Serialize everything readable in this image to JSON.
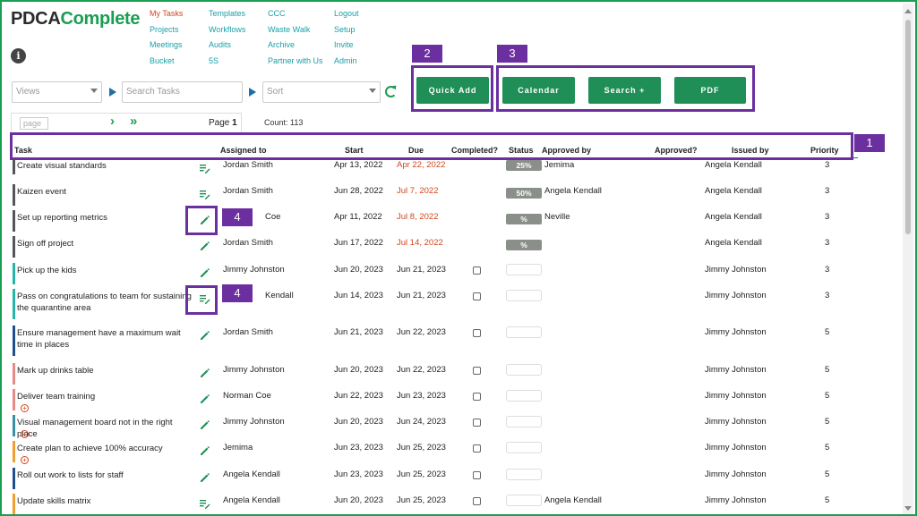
{
  "logo": {
    "part1": "PDCA",
    "part2": "Complete"
  },
  "nav": {
    "col1": [
      "My Tasks",
      "Projects",
      "Meetings",
      "Bucket"
    ],
    "col2": [
      "Templates",
      "Workflows",
      "Audits",
      "5S"
    ],
    "col3": [
      "CCC",
      "Waste Walk",
      "Archive",
      "Partner with Us"
    ],
    "col4": [
      "Logout",
      "Setup",
      "Invite",
      "Admin"
    ]
  },
  "filters": {
    "views_placeholder": "Views",
    "search_placeholder": "Search Tasks",
    "sort_placeholder": "Sort"
  },
  "buttons": {
    "quick_add": "Quick Add",
    "calendar": "Calendar",
    "search_plus": "Search +",
    "pdf": "PDF"
  },
  "pagination": {
    "page_input_placeholder": "page",
    "page_label": "Page",
    "page_number": "1",
    "count_text": "Count: 113"
  },
  "callouts": [
    "1",
    "2",
    "3",
    "4",
    "4"
  ],
  "columns": [
    "Task",
    "Assigned to",
    "Start",
    "Due",
    "Completed?",
    "Status",
    "Approved by",
    "Approved?",
    "Issued by",
    "Priority"
  ],
  "colors": {
    "brand_green": "#1a9e52",
    "callout_purple": "#6b2fa0",
    "overdue_red": "#d2451e",
    "link_teal": "#1aa0a8"
  },
  "rows": [
    {
      "task": "Create visual standards",
      "assigned": "Jordan Smith",
      "start": "Apr 13, 2022",
      "due": "Apr 22, 2022",
      "status": "25%",
      "approved_by": "Jemima",
      "issued_by": "Angela Kendall",
      "priority": "3"
    },
    {
      "task": "Kaizen event",
      "assigned": "Jordan Smith",
      "start": "Jun 28, 2022",
      "due": "Jul 7, 2022",
      "status": "50%",
      "approved_by": "Angela Kendall",
      "issued_by": "Angela Kendall",
      "priority": "3"
    },
    {
      "task": "Set up reporting metrics",
      "assigned": "Coe",
      "start": "Apr 11, 2022",
      "due": "Jul 8, 2022",
      "status": "%",
      "approved_by": "Neville",
      "issued_by": "Angela Kendall",
      "priority": "3"
    },
    {
      "task": "Sign off project",
      "assigned": "Jordan Smith",
      "start": "Jun 17, 2022",
      "due": "Jul 14, 2022",
      "status": "%",
      "approved_by": "",
      "issued_by": "Angela Kendall",
      "priority": "3"
    },
    {
      "task": "Pick up the kids",
      "assigned": "Jimmy Johnston",
      "start": "Jun 20, 2023",
      "due": "Jun 21, 2023",
      "status": "",
      "approved_by": "",
      "issued_by": "Jimmy Johnston",
      "priority": "3"
    },
    {
      "task": "Pass on congratulations to team for sustaining the quarantine area",
      "assigned": "Kendall",
      "start": "Jun 14, 2023",
      "due": "Jun 21, 2023",
      "status": "",
      "approved_by": "",
      "issued_by": "Jimmy Johnston",
      "priority": "3"
    },
    {
      "task": "Ensure management have a maximum wait time in places",
      "assigned": "Jordan Smith",
      "start": "Jun 21, 2023",
      "due": "Jun 22, 2023",
      "status": "",
      "approved_by": "",
      "issued_by": "Jimmy Johnston",
      "priority": "5"
    },
    {
      "task": "Mark up drinks table",
      "assigned": "Jimmy Johnston",
      "start": "Jun 20, 2023",
      "due": "Jun 22, 2023",
      "status": "",
      "approved_by": "",
      "issued_by": "Jimmy Johnston",
      "priority": "5"
    },
    {
      "task": "Deliver team training",
      "assigned": "Norman Coe",
      "start": "Jun 22, 2023",
      "due": "Jun 23, 2023",
      "status": "",
      "approved_by": "",
      "issued_by": "Jimmy Johnston",
      "priority": "5"
    },
    {
      "task": "Visual management board not in the right place",
      "assigned": "Jimmy Johnston",
      "start": "Jun 20, 2023",
      "due": "Jun 24, 2023",
      "status": "",
      "approved_by": "",
      "issued_by": "Jimmy Johnston",
      "priority": "5"
    },
    {
      "task": "Create plan to achieve 100% accuracy",
      "assigned": "Jemima",
      "start": "Jun 23, 2023",
      "due": "Jun 25, 2023",
      "status": "",
      "approved_by": "",
      "issued_by": "Jimmy Johnston",
      "priority": "5"
    },
    {
      "task": "Roll out work to lists for staff",
      "assigned": "Angela Kendall",
      "start": "Jun 23, 2023",
      "due": "Jun 25, 2023",
      "status": "",
      "approved_by": "",
      "issued_by": "Jimmy Johnston",
      "priority": "5"
    },
    {
      "task": "Update skills matrix",
      "assigned": "Angela Kendall",
      "start": "Jun 20, 2023",
      "due": "Jun 25, 2023",
      "status": "",
      "approved_by": "Angela Kendall",
      "issued_by": "Jimmy Johnston",
      "priority": "5"
    }
  ]
}
